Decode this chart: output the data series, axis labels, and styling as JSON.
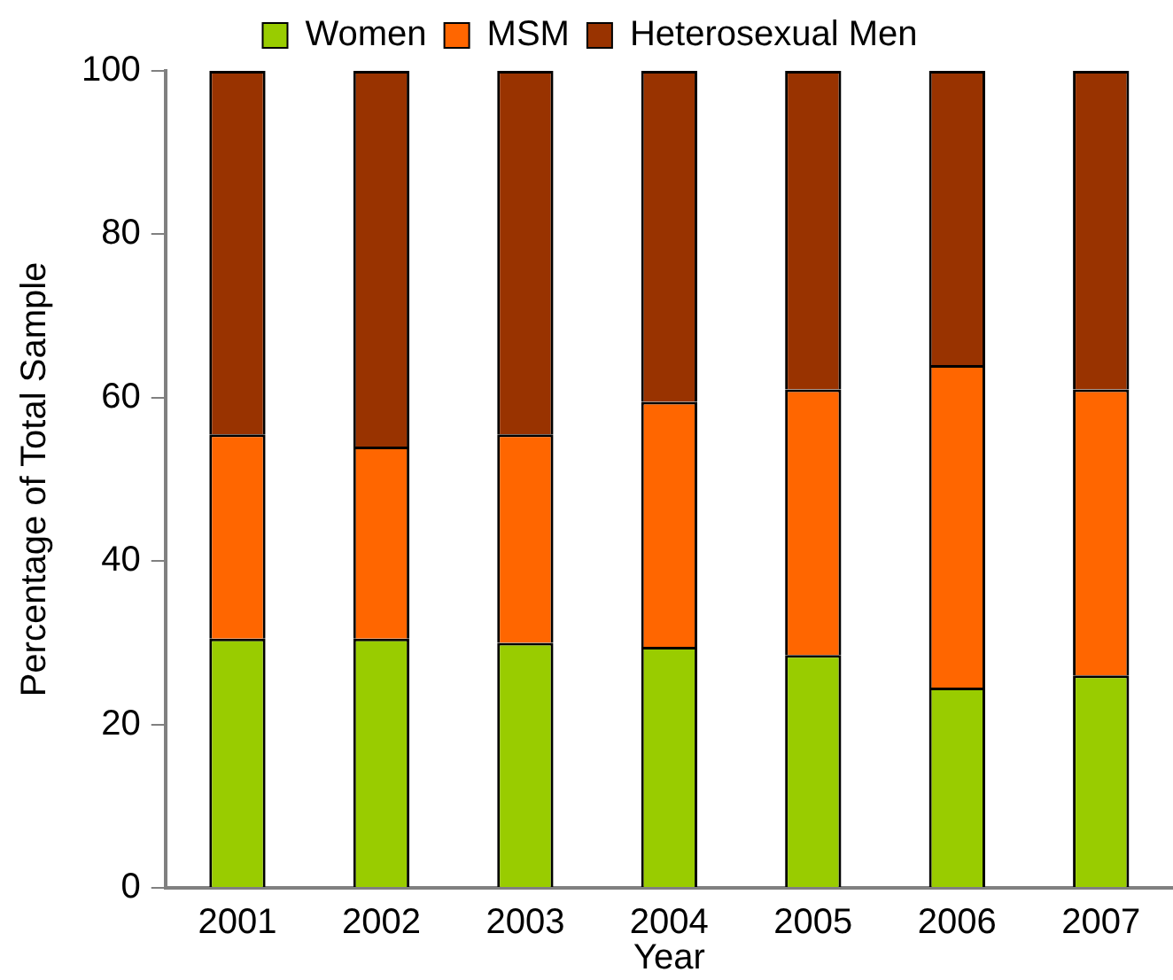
{
  "chart_data": {
    "type": "bar",
    "xlabel": "Year",
    "ylabel": "Percentage of Total Sample",
    "categories": [
      "2001",
      "2002",
      "2003",
      "2004",
      "2005",
      "2006",
      "2007"
    ],
    "stacked": true,
    "legend": "top",
    "grid": false,
    "ylim": [
      0,
      100
    ],
    "yticks": [
      0,
      20,
      40,
      60,
      80,
      100
    ],
    "series": [
      {
        "name": "Women",
        "color": "#99cc00",
        "values": [
          30.5,
          30.5,
          30,
          29.5,
          28.5,
          24.5,
          26
        ]
      },
      {
        "name": "MSM",
        "color": "#ff6600",
        "values": [
          25,
          23.5,
          25.5,
          30,
          32.5,
          39.5,
          35
        ]
      },
      {
        "name": "Heterosexual Men",
        "color": "#993300",
        "values": [
          44.5,
          46,
          44.5,
          40.5,
          39,
          36,
          39
        ]
      }
    ]
  }
}
